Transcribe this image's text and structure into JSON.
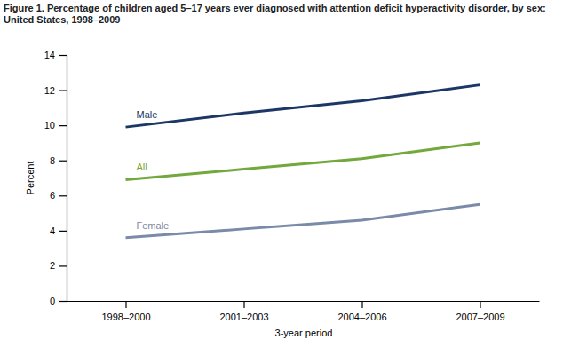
{
  "chart_data": {
    "type": "line",
    "title": [
      "Figure 1. Percentage of children aged 5–17 years ever diagnosed with attention deficit hyperactivity disorder, by sex:",
      "United States, 1998–2009"
    ],
    "x_label": "3-year period",
    "y_label": "Percent",
    "categories": [
      "1998–2000",
      "2001–2003",
      "2004–2006",
      "2007–2009"
    ],
    "series": [
      {
        "name": "Male",
        "color": "#1c3766",
        "values": [
          9.9,
          10.7,
          11.4,
          12.3
        ]
      },
      {
        "name": "All",
        "color": "#72a83c",
        "values": [
          6.9,
          7.5,
          8.1,
          9.0
        ]
      },
      {
        "name": "Female",
        "color": "#7a8aa8",
        "values": [
          3.6,
          4.1,
          4.6,
          5.5
        ]
      }
    ],
    "ylim": [
      0,
      14
    ],
    "yticks": [
      0,
      2,
      4,
      6,
      8,
      10,
      12,
      14
    ],
    "grid": false
  }
}
